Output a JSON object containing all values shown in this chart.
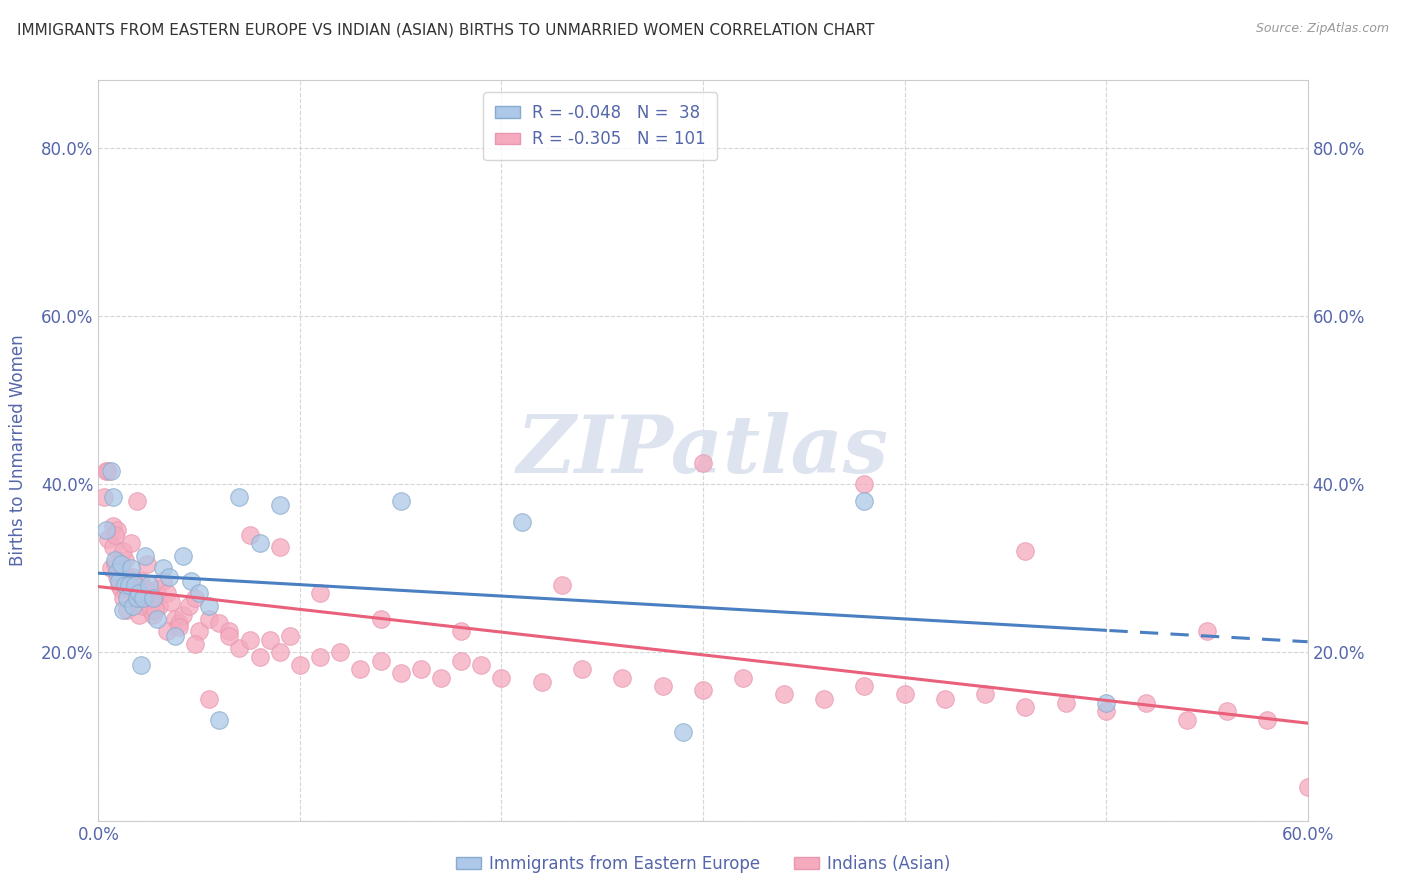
{
  "title": "IMMIGRANTS FROM EASTERN EUROPE VS INDIAN (ASIAN) BIRTHS TO UNMARRIED WOMEN CORRELATION CHART",
  "source": "Source: ZipAtlas.com",
  "ylabel": "Births to Unmarried Women",
  "xlim": [
    0.0,
    0.6
  ],
  "ylim": [
    0.0,
    0.88
  ],
  "ytick_labels": [
    "",
    "20.0%",
    "40.0%",
    "60.0%",
    "80.0%"
  ],
  "ytick_values": [
    0.0,
    0.2,
    0.4,
    0.6,
    0.8
  ],
  "xtick_labels": [
    "0.0%",
    "",
    "",
    "",
    "",
    "",
    "60.0%"
  ],
  "xtick_values": [
    0.0,
    0.1,
    0.2,
    0.3,
    0.4,
    0.5,
    0.6
  ],
  "legend1_R": "-0.048",
  "legend1_N": "38",
  "legend2_R": "-0.305",
  "legend2_N": "101",
  "blue_color": "#adc8e8",
  "pink_color": "#f5aabe",
  "blue_line_color": "#4a7fc1",
  "pink_line_color": "#e8607a",
  "axis_color": "#5566aa",
  "title_color": "#333333",
  "watermark": "ZIPatlas",
  "watermark_color": "#dde4f0",
  "legend_label_1": "Immigrants from Eastern Europe",
  "legend_label_2": "Indians (Asian)",
  "blue_x": [
    0.004,
    0.006,
    0.007,
    0.008,
    0.009,
    0.01,
    0.011,
    0.012,
    0.013,
    0.014,
    0.015,
    0.016,
    0.017,
    0.018,
    0.019,
    0.02,
    0.021,
    0.022,
    0.023,
    0.025,
    0.027,
    0.029,
    0.032,
    0.035,
    0.038,
    0.042,
    0.046,
    0.05,
    0.055,
    0.06,
    0.07,
    0.08,
    0.09,
    0.15,
    0.21,
    0.29,
    0.38,
    0.5
  ],
  "blue_y": [
    0.345,
    0.415,
    0.385,
    0.31,
    0.295,
    0.285,
    0.305,
    0.25,
    0.28,
    0.265,
    0.28,
    0.3,
    0.255,
    0.28,
    0.265,
    0.27,
    0.185,
    0.265,
    0.315,
    0.28,
    0.265,
    0.24,
    0.3,
    0.29,
    0.22,
    0.315,
    0.285,
    0.27,
    0.255,
    0.12,
    0.385,
    0.33,
    0.375,
    0.38,
    0.355,
    0.105,
    0.38,
    0.14
  ],
  "pink_x": [
    0.003,
    0.004,
    0.005,
    0.006,
    0.007,
    0.008,
    0.009,
    0.01,
    0.011,
    0.012,
    0.013,
    0.014,
    0.015,
    0.016,
    0.017,
    0.018,
    0.019,
    0.02,
    0.021,
    0.022,
    0.023,
    0.024,
    0.025,
    0.026,
    0.027,
    0.028,
    0.029,
    0.03,
    0.032,
    0.034,
    0.036,
    0.038,
    0.04,
    0.042,
    0.045,
    0.048,
    0.05,
    0.055,
    0.06,
    0.065,
    0.07,
    0.075,
    0.08,
    0.085,
    0.09,
    0.095,
    0.1,
    0.11,
    0.12,
    0.13,
    0.14,
    0.15,
    0.16,
    0.17,
    0.18,
    0.19,
    0.2,
    0.22,
    0.24,
    0.26,
    0.28,
    0.3,
    0.32,
    0.34,
    0.36,
    0.38,
    0.4,
    0.42,
    0.44,
    0.46,
    0.48,
    0.5,
    0.52,
    0.54,
    0.56,
    0.58,
    0.6,
    0.005,
    0.007,
    0.009,
    0.012,
    0.016,
    0.019,
    0.023,
    0.028,
    0.034,
    0.04,
    0.048,
    0.055,
    0.065,
    0.075,
    0.09,
    0.11,
    0.14,
    0.18,
    0.23,
    0.3,
    0.38,
    0.46,
    0.55,
    0.008,
    0.014
  ],
  "pink_y": [
    0.385,
    0.415,
    0.335,
    0.3,
    0.325,
    0.305,
    0.29,
    0.28,
    0.275,
    0.265,
    0.31,
    0.25,
    0.275,
    0.285,
    0.29,
    0.275,
    0.26,
    0.245,
    0.285,
    0.255,
    0.275,
    0.305,
    0.265,
    0.25,
    0.245,
    0.265,
    0.275,
    0.255,
    0.285,
    0.27,
    0.26,
    0.24,
    0.235,
    0.245,
    0.255,
    0.265,
    0.225,
    0.24,
    0.235,
    0.225,
    0.205,
    0.215,
    0.195,
    0.215,
    0.2,
    0.22,
    0.185,
    0.195,
    0.2,
    0.18,
    0.19,
    0.175,
    0.18,
    0.17,
    0.19,
    0.185,
    0.17,
    0.165,
    0.18,
    0.17,
    0.16,
    0.155,
    0.17,
    0.15,
    0.145,
    0.16,
    0.15,
    0.145,
    0.15,
    0.135,
    0.14,
    0.13,
    0.14,
    0.12,
    0.13,
    0.12,
    0.04,
    0.415,
    0.35,
    0.345,
    0.32,
    0.33,
    0.38,
    0.275,
    0.25,
    0.225,
    0.23,
    0.21,
    0.145,
    0.22,
    0.34,
    0.325,
    0.27,
    0.24,
    0.225,
    0.28,
    0.425,
    0.4,
    0.32,
    0.225,
    0.34,
    0.29
  ]
}
